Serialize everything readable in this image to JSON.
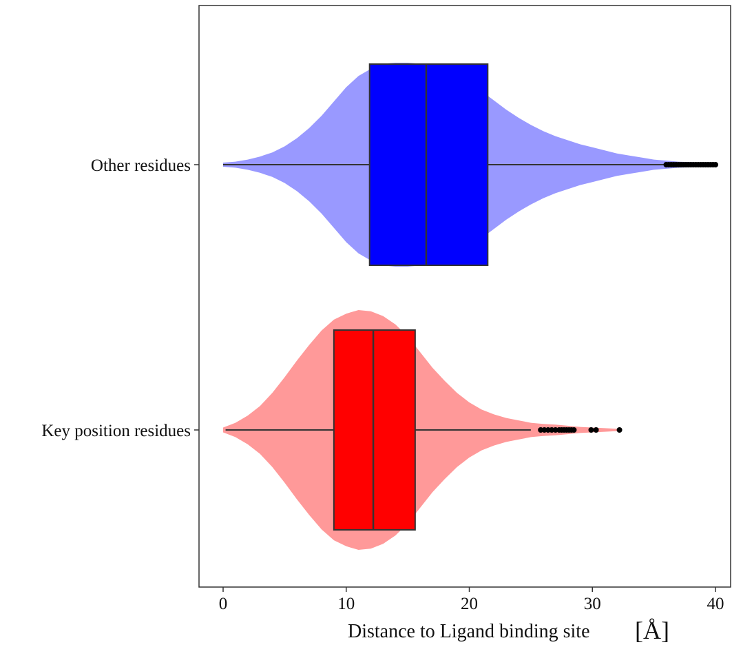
{
  "chart_data": {
    "type": "violin-box",
    "orientation": "horizontal",
    "xlabel": "Distance to Ligand binding site",
    "xlabel_unit": "[Å]",
    "xlim": [
      -2,
      41
    ],
    "xticks": [
      0,
      10,
      20,
      30,
      40
    ],
    "grid": false,
    "categories": [
      "Other residues",
      "Key position residues"
    ],
    "series": [
      {
        "category": "Other residues",
        "violin_color": "#9999ff",
        "box_color": "#0000ff",
        "box": {
          "whisker_low": 0,
          "q1": 11.9,
          "median": 16.5,
          "q3": 21.5,
          "whisker_high": 36
        },
        "density_profile": [
          [
            0,
            0.02
          ],
          [
            1,
            0.03
          ],
          [
            2,
            0.05
          ],
          [
            3,
            0.08
          ],
          [
            4,
            0.12
          ],
          [
            5,
            0.18
          ],
          [
            6,
            0.26
          ],
          [
            7,
            0.36
          ],
          [
            8,
            0.48
          ],
          [
            9,
            0.62
          ],
          [
            10,
            0.76
          ],
          [
            11,
            0.87
          ],
          [
            12,
            0.94
          ],
          [
            13,
            0.99
          ],
          [
            14,
            1.0
          ],
          [
            15,
            1.0
          ],
          [
            16,
            0.99
          ],
          [
            17,
            0.97
          ],
          [
            18,
            0.93
          ],
          [
            19,
            0.87
          ],
          [
            20,
            0.8
          ],
          [
            21,
            0.72
          ],
          [
            22,
            0.63
          ],
          [
            23,
            0.54
          ],
          [
            24,
            0.46
          ],
          [
            25,
            0.39
          ],
          [
            26,
            0.33
          ],
          [
            27,
            0.28
          ],
          [
            28,
            0.24
          ],
          [
            29,
            0.2
          ],
          [
            30,
            0.17
          ],
          [
            31,
            0.14
          ],
          [
            32,
            0.11
          ],
          [
            33,
            0.09
          ],
          [
            34,
            0.07
          ],
          [
            35,
            0.05
          ],
          [
            36,
            0.04
          ],
          [
            37,
            0.03
          ],
          [
            38,
            0.025
          ],
          [
            39,
            0.02
          ],
          [
            40,
            0.01
          ]
        ],
        "outliers": [
          36.0,
          36.2,
          36.4,
          36.6,
          36.8,
          37.0,
          37.2,
          37.4,
          37.6,
          37.8,
          38.0,
          38.2,
          38.4,
          38.6,
          38.8,
          39.0,
          39.2,
          39.4,
          39.6,
          39.8,
          40.0
        ]
      },
      {
        "category": "Key position residues",
        "violin_color": "#ff9999",
        "box_color": "#ff0000",
        "box": {
          "whisker_low": 0.2,
          "q1": 9.0,
          "median": 12.2,
          "q3": 15.6,
          "whisker_high": 25
        },
        "density_profile": [
          [
            0,
            0.02
          ],
          [
            1,
            0.06
          ],
          [
            2,
            0.12
          ],
          [
            3,
            0.2
          ],
          [
            4,
            0.31
          ],
          [
            5,
            0.44
          ],
          [
            6,
            0.58
          ],
          [
            7,
            0.71
          ],
          [
            8,
            0.83
          ],
          [
            9,
            0.92
          ],
          [
            10,
            0.97
          ],
          [
            11,
            1.0
          ],
          [
            12,
            0.99
          ],
          [
            13,
            0.95
          ],
          [
            14,
            0.88
          ],
          [
            15,
            0.78
          ],
          [
            16,
            0.65
          ],
          [
            17,
            0.52
          ],
          [
            18,
            0.41
          ],
          [
            19,
            0.31
          ],
          [
            20,
            0.23
          ],
          [
            21,
            0.17
          ],
          [
            22,
            0.13
          ],
          [
            23,
            0.1
          ],
          [
            24,
            0.08
          ],
          [
            25,
            0.06
          ],
          [
            26,
            0.05
          ],
          [
            27,
            0.045
          ],
          [
            28,
            0.035
          ],
          [
            29,
            0.025
          ],
          [
            30,
            0.02
          ],
          [
            31,
            0.015
          ],
          [
            32,
            0.01
          ],
          [
            32.3,
            0.0
          ]
        ],
        "outliers": [
          25.8,
          26.1,
          26.4,
          26.7,
          27.0,
          27.3,
          27.5,
          27.7,
          27.9,
          28.1,
          28.3,
          28.5,
          29.9,
          30.3,
          32.2
        ]
      }
    ]
  }
}
